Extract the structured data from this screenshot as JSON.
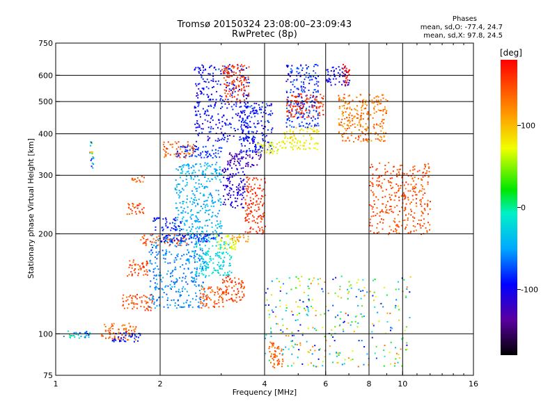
{
  "chart_data": {
    "type": "scatter",
    "title": "Tromsø 20150324 23:08:00–23:09:43",
    "subtitle": "RwPretec (8p)",
    "stats": {
      "heading": "Phases",
      "o_line": "mean, sd,O: -77.4, 24.7",
      "x_line": "mean, sd,X:  97.8, 24.5"
    },
    "xlabel": "Frequency [MHz]",
    "ylabel": "Stationary phase Virtual Height [km]",
    "x_scale": "log",
    "y_scale": "log",
    "xlim": [
      1,
      16
    ],
    "ylim": [
      75,
      750
    ],
    "x_ticks": [
      1,
      2,
      4,
      6,
      8,
      10,
      16
    ],
    "x_tick_labels": [
      "1",
      "2",
      "4",
      "6",
      "8",
      "10",
      "16"
    ],
    "x_grid_lines": [
      2,
      4,
      6,
      8,
      10
    ],
    "y_ticks": [
      75,
      100,
      200,
      300,
      400,
      500,
      600,
      750
    ],
    "y_tick_labels": [
      "75",
      "100",
      "200",
      "300",
      "400",
      "500",
      "600",
      "750"
    ],
    "y_grid_lines": [
      100,
      200,
      300,
      400,
      500,
      600
    ],
    "grid": true,
    "colorbar": {
      "label": "[deg]",
      "range": [
        -180,
        180
      ],
      "ticks": [
        100,
        0,
        -100
      ],
      "tick_labels": [
        "100",
        "0",
        "-100"
      ]
    },
    "clusters": [
      {
        "x": [
          1.05,
          1.25
        ],
        "y": [
          97,
          103
        ],
        "phase": [
          -90,
          20
        ]
      },
      {
        "x": [
          1.35,
          1.7
        ],
        "y": [
          96,
          108
        ],
        "phase": [
          130,
          160
        ]
      },
      {
        "x": [
          1.45,
          1.75
        ],
        "y": [
          95,
          102
        ],
        "phase": [
          -110,
          -80
        ]
      },
      {
        "x": [
          1.55,
          1.9
        ],
        "y": [
          118,
          132
        ],
        "phase": [
          140,
          170
        ]
      },
      {
        "x": [
          1.6,
          1.85
        ],
        "y": [
          150,
          168
        ],
        "phase": [
          140,
          170
        ]
      },
      {
        "x": [
          1.6,
          1.8
        ],
        "y": [
          230,
          250
        ],
        "phase": [
          145,
          175
        ]
      },
      {
        "x": [
          1.65,
          1.8
        ],
        "y": [
          285,
          300
        ],
        "phase": [
          130,
          160
        ]
      },
      {
        "x": [
          1.75,
          2.4
        ],
        "y": [
          185,
          200
        ],
        "phase": [
          140,
          170
        ]
      },
      {
        "x": [
          1.85,
          2.7
        ],
        "y": [
          120,
          200
        ],
        "phase": [
          -80,
          -40
        ]
      },
      {
        "x": [
          2.0,
          3.0
        ],
        "y": [
          190,
          200
        ],
        "phase": [
          -110,
          -80
        ]
      },
      {
        "x": [
          1.9,
          2.3
        ],
        "y": [
          205,
          225
        ],
        "phase": [
          -110,
          -80
        ]
      },
      {
        "x": [
          2.2,
          3.0
        ],
        "y": [
          190,
          330
        ],
        "phase": [
          -60,
          -30
        ]
      },
      {
        "x": [
          2.0,
          2.5
        ],
        "y": [
          340,
          380
        ],
        "phase": [
          130,
          170
        ]
      },
      {
        "x": [
          2.2,
          3.0
        ],
        "y": [
          340,
          370
        ],
        "phase": [
          -100,
          -70
        ]
      },
      {
        "x": [
          2.5,
          3.2
        ],
        "y": [
          150,
          190
        ],
        "phase": [
          -40,
          -10
        ]
      },
      {
        "x": [
          2.6,
          3.1
        ],
        "y": [
          120,
          140
        ],
        "phase": [
          140,
          170
        ]
      },
      {
        "x": [
          3.0,
          3.5
        ],
        "y": [
          125,
          150
        ],
        "phase": [
          140,
          175
        ]
      },
      {
        "x": [
          2.9,
          3.3
        ],
        "y": [
          180,
          200
        ],
        "phase": [
          60,
          90
        ]
      },
      {
        "x": [
          3.2,
          3.6
        ],
        "y": [
          190,
          200
        ],
        "phase": [
          110,
          140
        ]
      },
      {
        "x": [
          3.5,
          4.0
        ],
        "y": [
          200,
          300
        ],
        "phase": [
          150,
          175
        ]
      },
      {
        "x": [
          2.5,
          3.6
        ],
        "y": [
          380,
          650
        ],
        "phase": [
          -120,
          -80
        ]
      },
      {
        "x": [
          3.0,
          3.5
        ],
        "y": [
          240,
          320
        ],
        "phase": [
          -130,
          -100
        ]
      },
      {
        "x": [
          3.1,
          3.9
        ],
        "y": [
          320,
          360
        ],
        "phase": [
          -150,
          -110
        ]
      },
      {
        "x": [
          3.4,
          4.2
        ],
        "y": [
          350,
          500
        ],
        "phase": [
          -120,
          -70
        ]
      },
      {
        "x": [
          3.0,
          3.6
        ],
        "y": [
          500,
          650
        ],
        "phase": [
          150,
          175
        ]
      },
      {
        "x": [
          3.8,
          4.6
        ],
        "y": [
          350,
          380
        ],
        "phase": [
          60,
          100
        ]
      },
      {
        "x": [
          4.5,
          5.7
        ],
        "y": [
          360,
          420
        ],
        "phase": [
          70,
          110
        ]
      },
      {
        "x": [
          4.6,
          5.7
        ],
        "y": [
          420,
          650
        ],
        "phase": [
          -120,
          -60
        ]
      },
      {
        "x": [
          4.6,
          5.9
        ],
        "y": [
          450,
          530
        ],
        "phase": [
          150,
          175
        ]
      },
      {
        "x": [
          6.0,
          7.0
        ],
        "y": [
          560,
          640
        ],
        "phase": [
          -130,
          -90
        ]
      },
      {
        "x": [
          6.7,
          7.0
        ],
        "y": [
          560,
          660
        ],
        "phase": [
          170,
          180
        ]
      },
      {
        "x": [
          6.5,
          9.0
        ],
        "y": [
          380,
          530
        ],
        "phase": [
          120,
          160
        ]
      },
      {
        "x": [
          4.1,
          4.5
        ],
        "y": [
          78,
          95
        ],
        "phase": [
          140,
          160
        ]
      },
      {
        "x": [
          4.0,
          10.5
        ],
        "y": [
          80,
          150
        ],
        "phase": [
          -120,
          150
        ]
      },
      {
        "x": [
          8.0,
          12.0
        ],
        "y": [
          200,
          330
        ],
        "phase": [
          140,
          170
        ]
      },
      {
        "x": [
          1.25,
          1.28
        ],
        "y": [
          310,
          380
        ],
        "phase": [
          -120,
          170
        ]
      }
    ]
  }
}
